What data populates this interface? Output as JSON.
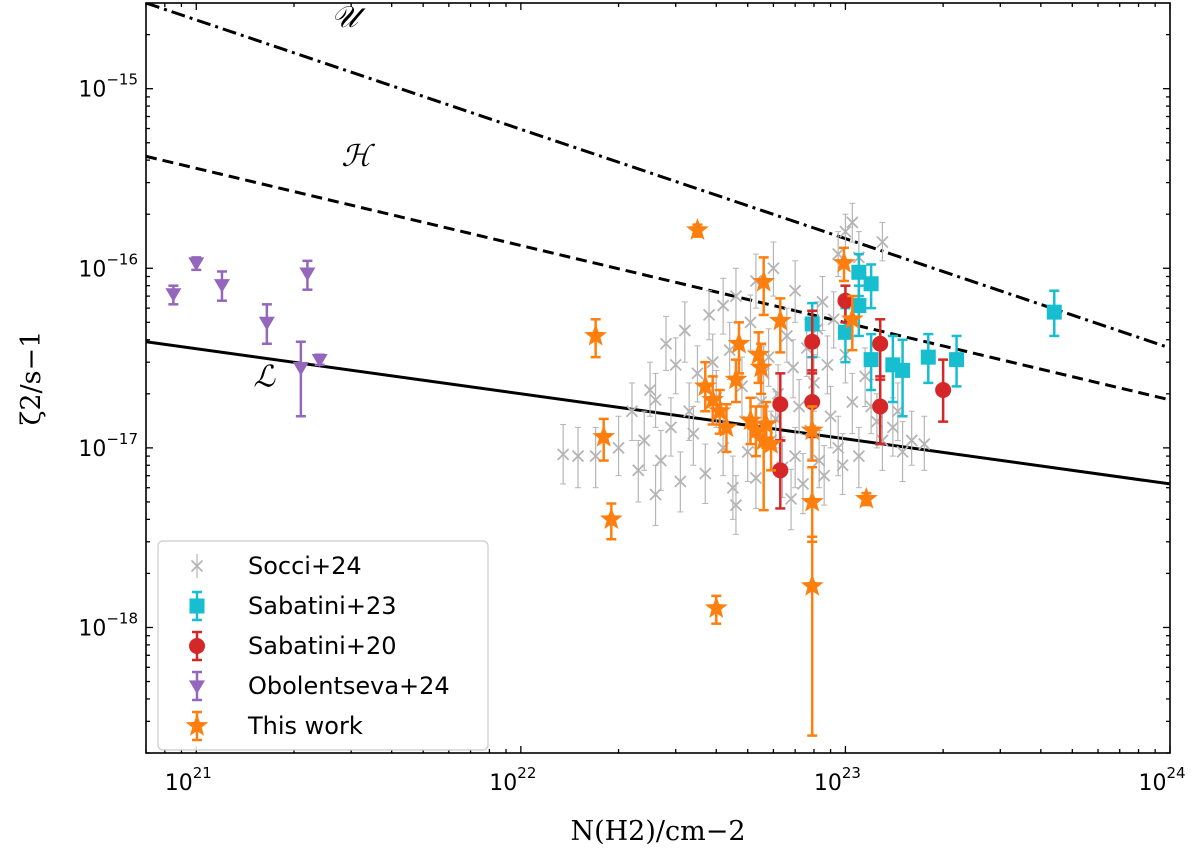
{
  "chart_data": {
    "type": "scatter",
    "xscale": "log",
    "yscale": "log",
    "xlim": [
      7e+20,
      1e+24
    ],
    "ylim": [
      2e-19,
      3e-15
    ],
    "xlabel": "N(H2)/cm−2",
    "ylabel": "ζ2/s−1",
    "x_ticks": [
      {
        "value": 1e+21,
        "base": "10",
        "exp": "21"
      },
      {
        "value": 1e+22,
        "base": "10",
        "exp": "22"
      },
      {
        "value": 1e+23,
        "base": "10",
        "exp": "23"
      },
      {
        "value": 1e+24,
        "base": "10",
        "exp": "24"
      }
    ],
    "y_ticks": [
      {
        "value": 1e-18,
        "base": "10",
        "exp": "−18"
      },
      {
        "value": 1e-17,
        "base": "10",
        "exp": "−17"
      },
      {
        "value": 1e-16,
        "base": "10",
        "exp": "−16"
      },
      {
        "value": 1e-15,
        "base": "10",
        "exp": "−15"
      }
    ],
    "model_curves": [
      {
        "name": "U",
        "label": "𝒰",
        "style": "dashdot",
        "points": [
          [
            7e+20,
            3e-15
          ],
          [
            1e+24,
            3.6e-17
          ]
        ],
        "label_at": [
          2.6e+21,
          2.2e-15
        ]
      },
      {
        "name": "H",
        "label": "ℋ",
        "style": "dashed",
        "points": [
          [
            7e+20,
            4.2e-16
          ],
          [
            1e+24,
            1.85e-17
          ]
        ],
        "label_at": [
          2.8e+21,
          3.7e-16
        ]
      },
      {
        "name": "L",
        "label": "ℒ",
        "style": "solid",
        "points": [
          [
            7e+20,
            3.9e-17
          ],
          [
            1e+24,
            6.3e-18
          ]
        ],
        "label_at": [
          1.5e+21,
          2.2e-17
        ]
      }
    ],
    "series": [
      {
        "name": "Socci+24",
        "color": "#b5b5b5",
        "marker": "x",
        "points": [
          [
            1e+23,
            1.6e-16,
            1.3e-16,
            2e-16
          ],
          [
            1.05e+23,
            1.8e-16,
            1.4e-16,
            2.3e-16
          ],
          [
            1.3e+23,
            1.4e-16,
            1.1e-16,
            1.8e-16
          ],
          [
            1.1e+23,
            1.15e-16,
            8e-17,
            1.6e-16
          ],
          [
            9.5e+22,
            1.2e-16,
            9e-17,
            1.6e-16
          ],
          [
            6e+22,
            1e-16,
            7e-17,
            1.4e-16
          ],
          [
            5.3e+22,
            8.5e-17,
            6e-17,
            1.2e-16
          ],
          [
            4.6e+22,
            7e-17,
            5e-17,
            1e-16
          ],
          [
            7e+22,
            7.5e-17,
            5e-17,
            1.1e-16
          ],
          [
            8.5e+22,
            6.5e-17,
            4.5e-17,
            9e-17
          ],
          [
            3.8e+22,
            5.5e-17,
            4e-17,
            7.5e-17
          ],
          [
            3.2e+22,
            4.5e-17,
            3e-17,
            6.5e-17
          ],
          [
            2.8e+22,
            3.8e-17,
            2.7e-17,
            5.4e-17
          ],
          [
            4.4e+22,
            3.5e-17,
            2.4e-17,
            5e-17
          ],
          [
            5.8e+22,
            3.2e-17,
            2.2e-17,
            4.6e-17
          ],
          [
            6.6e+22,
            4.2e-17,
            3e-17,
            6e-17
          ],
          [
            7.6e+22,
            3.6e-17,
            2.5e-17,
            5.2e-17
          ],
          [
            8.8e+22,
            2.9e-17,
            2e-17,
            4.2e-17
          ],
          [
            1e+23,
            3.3e-17,
            2.3e-17,
            4.8e-17
          ],
          [
            1.15e+23,
            2.5e-17,
            1.7e-17,
            3.6e-17
          ],
          [
            3.5e+22,
            2.6e-17,
            1.8e-17,
            3.7e-17
          ],
          [
            2.5e+22,
            2.1e-17,
            1.5e-17,
            3e-17
          ],
          [
            2.2e+22,
            1.6e-17,
            1.1e-17,
            2.3e-17
          ],
          [
            4e+22,
            1.9e-17,
            1.3e-17,
            2.7e-17
          ],
          [
            4.8e+22,
            2.2e-17,
            1.5e-17,
            3.2e-17
          ],
          [
            5.5e+22,
            1.8e-17,
            1.2e-17,
            2.6e-17
          ],
          [
            6.2e+22,
            2e-17,
            1.4e-17,
            2.9e-17
          ],
          [
            7.2e+22,
            1.7e-17,
            1.2e-17,
            2.4e-17
          ],
          [
            8e+22,
            2.3e-17,
            1.6e-17,
            3.3e-17
          ],
          [
            9e+22,
            1.5e-17,
            1e-17,
            2.2e-17
          ],
          [
            1.05e+23,
            1.8e-17,
            1.2e-17,
            2.6e-17
          ],
          [
            1.25e+23,
            1.4e-17,
            1e-17,
            2e-17
          ],
          [
            1.4e+23,
            1.3e-17,
            9e-18,
            1.9e-17
          ],
          [
            1.6e+23,
            1.1e-17,
            8e-18,
            1.6e-17
          ],
          [
            1.75e+23,
            1.05e-17,
            7.5e-18,
            1.5e-17
          ],
          [
            1.5e+23,
            9.5e-18,
            6.5e-18,
            1.4e-17
          ],
          [
            1.3e+23,
            1.1e-17,
            7.5e-18,
            1.6e-17
          ],
          [
            1.1e+23,
            9e-18,
            6e-18,
            1.3e-17
          ],
          [
            9.5e+22,
            1e-17,
            7e-18,
            1.5e-17
          ],
          [
            8.3e+22,
            8.5e-18,
            6e-18,
            1.25e-17
          ],
          [
            7e+22,
            9e-18,
            6e-18,
            1.3e-17
          ],
          [
            5.9e+22,
            1.1e-17,
            7.5e-18,
            1.6e-17
          ],
          [
            5e+22,
            9.5e-18,
            6.5e-18,
            1.4e-17
          ],
          [
            4.2e+22,
            1e-17,
            7e-18,
            1.5e-17
          ],
          [
            3.4e+22,
            1.2e-17,
            8e-18,
            1.7e-17
          ],
          [
            2.9e+22,
            1.3e-17,
            9e-18,
            1.9e-17
          ],
          [
            2.4e+22,
            1.1e-17,
            7.5e-18,
            1.6e-17
          ],
          [
            2e+22,
            1e-17,
            7e-18,
            1.5e-17
          ],
          [
            1.7e+22,
            9e-18,
            6e-18,
            1.3e-17
          ],
          [
            1.5e+22,
            9e-18,
            6e-18,
            1.3e-17
          ],
          [
            1.35e+22,
            9.2e-18,
            6.3e-18,
            1.35e-17
          ],
          [
            2.3e+22,
            7.5e-18,
            5e-18,
            1.1e-17
          ],
          [
            2.7e+22,
            8.5e-18,
            5.8e-18,
            1.25e-17
          ],
          [
            3.1e+22,
            6.5e-18,
            4.4e-18,
            9.5e-18
          ],
          [
            3.7e+22,
            7.2e-18,
            4.9e-18,
            1.05e-17
          ],
          [
            4.5e+22,
            6e-18,
            4e-18,
            9e-18
          ],
          [
            5.3e+22,
            6.8e-18,
            4.6e-18,
            1e-17
          ],
          [
            6.4e+22,
            7.8e-18,
            5.3e-18,
            1.15e-17
          ],
          [
            7.4e+22,
            6.3e-18,
            4.3e-18,
            9.3e-18
          ],
          [
            8.6e+22,
            7e-18,
            4.8e-18,
            1.03e-17
          ],
          [
            9.8e+22,
            8e-18,
            5.5e-18,
            1.2e-17
          ],
          [
            4.6e+22,
            4.8e-18,
            3.3e-18,
            7e-18
          ],
          [
            6.8e+22,
            5.2e-18,
            3.5e-18,
            7.6e-18
          ],
          [
            2.6e+22,
            5.5e-18,
            3.7e-18,
            8e-18
          ],
          [
            3.3e+22,
            1.6e-17,
            1.1e-17,
            2.3e-17
          ],
          [
            5.6e+22,
            2.6e-17,
            1.8e-17,
            3.7e-17
          ],
          [
            6.9e+22,
            2.8e-17,
            1.9e-17,
            4e-17
          ],
          [
            8.2e+22,
            4.6e-17,
            3.2e-17,
            6.5e-17
          ],
          [
            9.2e+22,
            5.2e-17,
            3.6e-17,
            7.4e-17
          ],
          [
            4.2e+22,
            6.2e-17,
            4.3e-17,
            8.8e-17
          ],
          [
            5.1e+22,
            5e-17,
            3.5e-17,
            7.1e-17
          ],
          [
            3.9e+22,
            3e-17,
            2.1e-17,
            4.3e-17
          ],
          [
            3e+22,
            2.9e-17,
            2e-17,
            4.1e-17
          ],
          [
            2.6e+22,
            1.85e-17,
            1.3e-17,
            2.6e-17
          ],
          [
            6.1e+22,
            1.45e-17,
            1e-17,
            2.05e-17
          ],
          [
            7.8e+22,
            1.25e-17,
            8.7e-18,
            1.8e-17
          ],
          [
            1.2e+23,
            1.7e-17,
            1.2e-17,
            2.4e-17
          ],
          [
            1.45e+23,
            1.6e-17,
            1.1e-17,
            2.3e-17
          ]
        ]
      },
      {
        "name": "Sabatini+23",
        "color": "#17becf",
        "marker": "s",
        "points": [
          [
            1.1e+23,
            9.5e-17,
            7e-17,
            1.2e-16
          ],
          [
            1.2e+23,
            8.2e-17,
            6e-17,
            1.05e-16
          ],
          [
            1.1e+23,
            6.2e-17,
            4.2e-17,
            8e-17
          ],
          [
            7.9e+22,
            4.9e-17,
            3.2e-17,
            6.4e-17
          ],
          [
            1e+23,
            4.4e-17,
            3e-17,
            6e-17
          ],
          [
            1.2e+23,
            3.1e-17,
            2.1e-17,
            4.3e-17
          ],
          [
            1.4e+23,
            2.9e-17,
            1.8e-17,
            4.2e-17
          ],
          [
            1.5e+23,
            2.7e-17,
            1.5e-17,
            4e-17
          ],
          [
            1.8e+23,
            3.2e-17,
            2.3e-17,
            4.3e-17
          ],
          [
            2.2e+23,
            3.1e-17,
            2.2e-17,
            4.2e-17
          ],
          [
            4.4e+23,
            5.7e-17,
            4.2e-17,
            7.5e-17
          ]
        ]
      },
      {
        "name": "Sabatini+20",
        "color": "#d62728",
        "marker": "o",
        "points": [
          [
            1e+23,
            6.6e-17,
            5e-17,
            8e-17
          ],
          [
            7.9e+22,
            3.9e-17,
            2.6e-17,
            5.8e-17
          ],
          [
            1.28e+23,
            3.8e-17,
            2.4e-17,
            5.2e-17
          ],
          [
            2e+23,
            2.1e-17,
            1.4e-17,
            3.1e-17
          ],
          [
            6.3e+22,
            1.75e-17,
            1.1e-17,
            2.6e-17
          ],
          [
            7.9e+22,
            1.8e-17,
            1.15e-17,
            2.7e-17
          ],
          [
            1.28e+23,
            1.7e-17,
            1.05e-17,
            2.5e-17
          ],
          [
            6.3e+22,
            7.5e-18,
            4.6e-18,
            1.1e-17
          ]
        ]
      },
      {
        "name": "Obolentseva+24",
        "color": "#9467bd",
        "marker": "v",
        "points": [
          [
            8.5e+20,
            7.2e-17,
            6.3e-17,
            8e-17
          ],
          [
            1e+21,
            1.07e-16,
            9.8e-17,
            1.15e-16
          ],
          [
            1.2e+21,
            8.1e-17,
            6.6e-17,
            9.6e-17
          ],
          [
            1.65e+21,
            5e-17,
            3.8e-17,
            6.3e-17
          ],
          [
            2.2e+21,
            9.4e-17,
            7.6e-17,
            1.1e-16
          ],
          [
            2.1e+21,
            2.8e-17,
            1.5e-17,
            3.9e-17
          ],
          [
            2.4e+21,
            3.1e-17,
            2.9e-17,
            3.3e-17
          ]
        ]
      },
      {
        "name": "This work",
        "color": "#ff7f0e",
        "marker": "*",
        "points": [
          [
            3.5e+22,
            1.63e-16,
            1.5e-16,
            1.75e-16
          ],
          [
            9.9e+22,
            1.07e-16,
            8.5e-17,
            1.3e-16
          ],
          [
            5.6e+22,
            8.4e-17,
            5.5e-17,
            1.15e-16
          ],
          [
            1.05e+23,
            5.2e-17,
            3.5e-17,
            7e-17
          ],
          [
            6.3e+22,
            5.1e-17,
            3.4e-17,
            6.8e-17
          ],
          [
            1.7e+22,
            4.2e-17,
            3.2e-17,
            5.2e-17
          ],
          [
            4.7e+22,
            3.8e-17,
            2.6e-17,
            5e-17
          ],
          [
            5.4e+22,
            3.3e-17,
            2.3e-17,
            4.4e-17
          ],
          [
            5.5e+22,
            2.8e-17,
            2e-17,
            3.8e-17
          ],
          [
            4.6e+22,
            2.4e-17,
            1.8e-17,
            3.1e-17
          ],
          [
            3.7e+22,
            2.2e-17,
            1.6e-17,
            3e-17
          ],
          [
            3.9e+22,
            1.85e-17,
            1.35e-17,
            2.5e-17
          ],
          [
            4.1e+22,
            1.6e-17,
            1.2e-17,
            2.1e-17
          ],
          [
            5.1e+22,
            1.42e-17,
            1.05e-17,
            1.9e-17
          ],
          [
            5.7e+22,
            1.35e-17,
            1e-17,
            1.8e-17
          ],
          [
            5.3e+22,
            1.25e-17,
            9e-18,
            1.7e-17
          ],
          [
            4.3e+22,
            1.3e-17,
            9.5e-18,
            1.75e-17
          ],
          [
            7.9e+22,
            1.25e-17,
            8.5e-18,
            1.7e-17
          ],
          [
            1.8e+22,
            1.15e-17,
            8.5e-18,
            1.45e-17
          ],
          [
            5.9e+22,
            1.05e-17,
            7.5e-18,
            1.4e-17
          ],
          [
            5.6e+22,
            1.1e-17,
            4.5e-18,
            1.7e-17
          ],
          [
            7.9e+22,
            5e-18,
            3e-18,
            7.8e-18
          ],
          [
            1.16e+23,
            5.2e-18,
            4.8e-18,
            5.6e-18
          ],
          [
            1.9e+22,
            4e-18,
            3.1e-18,
            4.9e-18
          ],
          [
            7.9e+22,
            1.7e-18,
            2.5e-19,
            3.2e-18
          ],
          [
            4e+22,
            1.28e-18,
            1.05e-18,
            1.5e-18
          ]
        ]
      }
    ],
    "legend": {
      "position": "lower-left",
      "entries": [
        {
          "label": "Socci+24",
          "series": 0
        },
        {
          "label": "Sabatini+23",
          "series": 1
        },
        {
          "label": "Sabatini+20",
          "series": 2
        },
        {
          "label": "Obolentseva+24",
          "series": 3
        },
        {
          "label": "This work",
          "series": 4
        }
      ]
    }
  }
}
